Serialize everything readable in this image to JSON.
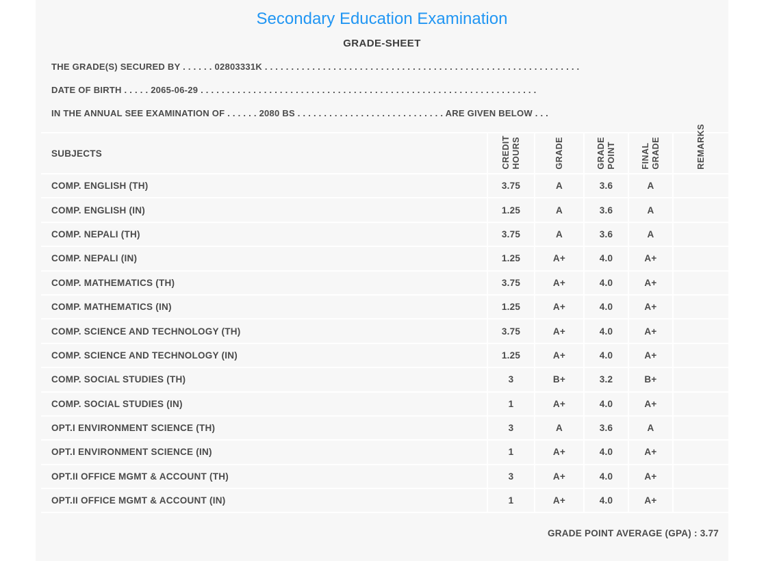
{
  "header": {
    "title": "Secondary Education Examination",
    "subtitle": "GRADE-SHEET"
  },
  "info_lines": [
    {
      "label": "THE GRADE(S) SECURED BY",
      "leader_dots": ". . . . . .",
      "value": "02803331K",
      "trailer_dots": ". . . . . . . . . . . . . . . . . . . . . . . . . . . . . . . . . . . . . . . . . . . . . . . . . . . . . . . . . . . ."
    },
    {
      "label": "DATE OF BIRTH",
      "leader_dots": ". . . . .",
      "value": "2065-06-29",
      "trailer_dots": ". . . . . . . . . . . . . . . . . . . . . . . . . . . . . . . . . . . . . . . . . . . . . . . . . . . . . . . . . . . . . . . ."
    },
    {
      "label": "IN THE ANNUAL SEE EXAMINATION OF",
      "leader_dots": ". . . . . .",
      "value": "2080 BS",
      "trailer_dots": ". . . . . . . . . . . . . . . . . . . . . . . . . . . .",
      "suffix": "ARE GIVEN BELOW",
      "suffix_dots": ". . ."
    }
  ],
  "table": {
    "headers": [
      "SUBJECTS",
      "CREDIT\nHOURS",
      "GRADE",
      "GRADE\nPOINT",
      "FINAL\nGRADE",
      "REMARKS"
    ],
    "rows": [
      {
        "subject": "COMP. ENGLISH (TH)",
        "credit_hours": "3.75",
        "grade": "A",
        "grade_point": "3.6",
        "final_grade": "A",
        "remarks": ""
      },
      {
        "subject": "COMP. ENGLISH (IN)",
        "credit_hours": "1.25",
        "grade": "A",
        "grade_point": "3.6",
        "final_grade": "A",
        "remarks": ""
      },
      {
        "subject": "COMP. NEPALI (TH)",
        "credit_hours": "3.75",
        "grade": "A",
        "grade_point": "3.6",
        "final_grade": "A",
        "remarks": ""
      },
      {
        "subject": "COMP. NEPALI (IN)",
        "credit_hours": "1.25",
        "grade": "A+",
        "grade_point": "4.0",
        "final_grade": "A+",
        "remarks": ""
      },
      {
        "subject": "COMP. MATHEMATICS (TH)",
        "credit_hours": "3.75",
        "grade": "A+",
        "grade_point": "4.0",
        "final_grade": "A+",
        "remarks": ""
      },
      {
        "subject": "COMP. MATHEMATICS (IN)",
        "credit_hours": "1.25",
        "grade": "A+",
        "grade_point": "4.0",
        "final_grade": "A+",
        "remarks": ""
      },
      {
        "subject": "COMP. SCIENCE AND TECHNOLOGY (TH)",
        "credit_hours": "3.75",
        "grade": "A+",
        "grade_point": "4.0",
        "final_grade": "A+",
        "remarks": ""
      },
      {
        "subject": "COMP. SCIENCE AND TECHNOLOGY (IN)",
        "credit_hours": "1.25",
        "grade": "A+",
        "grade_point": "4.0",
        "final_grade": "A+",
        "remarks": ""
      },
      {
        "subject": "COMP. SOCIAL STUDIES (TH)",
        "credit_hours": "3",
        "grade": "B+",
        "grade_point": "3.2",
        "final_grade": "B+",
        "remarks": ""
      },
      {
        "subject": "COMP. SOCIAL STUDIES (IN)",
        "credit_hours": "1",
        "grade": "A+",
        "grade_point": "4.0",
        "final_grade": "A+",
        "remarks": ""
      },
      {
        "subject": "OPT.I ENVIRONMENT SCIENCE (TH)",
        "credit_hours": "3",
        "grade": "A",
        "grade_point": "3.6",
        "final_grade": "A",
        "remarks": ""
      },
      {
        "subject": "OPT.I ENVIRONMENT SCIENCE (IN)",
        "credit_hours": "1",
        "grade": "A+",
        "grade_point": "4.0",
        "final_grade": "A+",
        "remarks": ""
      },
      {
        "subject": "OPT.II OFFICE MGMT & ACCOUNT (TH)",
        "credit_hours": "3",
        "grade": "A+",
        "grade_point": "4.0",
        "final_grade": "A+",
        "remarks": ""
      },
      {
        "subject": "OPT.II OFFICE MGMT & ACCOUNT (IN)",
        "credit_hours": "1",
        "grade": "A+",
        "grade_point": "4.0",
        "final_grade": "A+",
        "remarks": ""
      }
    ]
  },
  "footer": {
    "gpa_line": "GRADE POINT AVERAGE (GPA) : 3.77"
  },
  "colors": {
    "title_accent": "#2196f3",
    "body_text": "#4a4a4a",
    "panel_background": "#f7f7f7",
    "separator": "#ffffff"
  }
}
